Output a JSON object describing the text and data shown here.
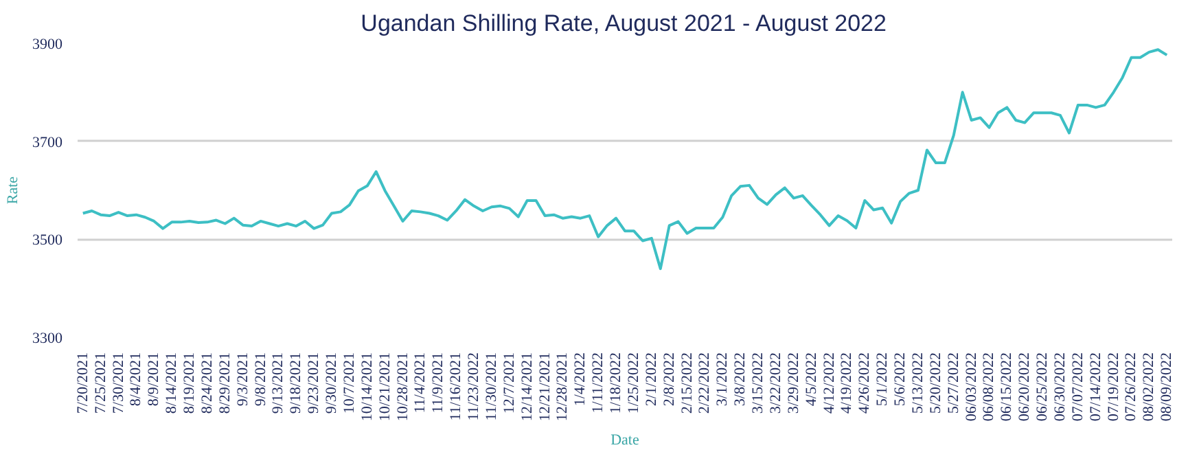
{
  "chart_data": {
    "type": "line",
    "title": "Ugandan Shilling Rate, August 2021 - August 2022",
    "xlabel": "Date",
    "ylabel": "Rate",
    "categories": [
      "7/20/2021",
      null,
      "7/25/2021",
      null,
      "7/30/2021",
      null,
      "8/4/2021",
      null,
      "8/9/2021",
      null,
      "8/14/2021",
      null,
      "8/19/2021",
      null,
      "8/24/2021",
      null,
      "8/29/2021",
      null,
      "9/3/2021",
      null,
      "9/8/2021",
      null,
      "9/13/2021",
      null,
      "9/18/2021",
      null,
      "9/23/2021",
      null,
      "9/30/2021",
      null,
      "10/7/2021",
      null,
      "10/14/2021",
      null,
      "10/21/2021",
      null,
      "10/28/2021",
      null,
      "11/4/2021",
      null,
      "11/9/2021",
      null,
      "11/16/2021",
      null,
      "11/23/2022",
      null,
      "11/30/2021",
      null,
      "12/7/2021",
      null,
      "12/14/2021",
      null,
      "12/21/2021",
      null,
      "12/28/2021",
      null,
      "1/4/2022",
      null,
      "1/11/2022",
      null,
      "1/18/2022",
      null,
      "1/25/2022",
      null,
      "2/1/2022",
      null,
      "2/8/2022",
      null,
      "2/15/2022",
      null,
      "2/22/2022",
      null,
      "3/1/2022",
      null,
      "3/8/2022",
      null,
      "3/15/2022",
      null,
      "3/22/2022",
      null,
      "3/29/2022",
      null,
      "4/5/2022",
      null,
      "4/12/2022",
      null,
      "4/19/2022",
      null,
      "4/26/2022",
      null,
      "5/1/2022",
      null,
      "5/6/2022",
      null,
      "5/13/2022",
      null,
      "5/20/2022",
      null,
      "5/27/2022",
      null,
      "06/03/2022",
      null,
      "06/08/2022",
      null,
      "06/15/2022",
      null,
      "06/20/2022",
      null,
      "06/25/2022",
      null,
      "06/30/2022",
      null,
      "07/07/2022",
      null,
      "07/14/2022",
      null,
      "07/19/2022",
      null,
      "07/26/2022",
      null,
      "08/02/2022",
      null,
      "08/09/2022"
    ],
    "series": [
      {
        "color": "#3dbfc4",
        "values": [
          3553,
          3558,
          3550,
          3548,
          3555,
          3548,
          3550,
          3545,
          3537,
          3522,
          3535,
          3535,
          3537,
          3534,
          3535,
          3539,
          3532,
          3543,
          3529,
          3527,
          3537,
          3532,
          3527,
          3532,
          3527,
          3537,
          3522,
          3529,
          3553,
          3556,
          3570,
          3599,
          3609,
          3638,
          3599,
          3568,
          3537,
          3558,
          3556,
          3553,
          3548,
          3539,
          3558,
          3581,
          3568,
          3558,
          3566,
          3568,
          3563,
          3546,
          3579,
          3579,
          3548,
          3550,
          3543,
          3546,
          3543,
          3548,
          3505,
          3528,
          3543,
          3517,
          3517,
          3497,
          3502,
          3440,
          3528,
          3536,
          3512,
          3523,
          3523,
          3523,
          3545,
          3589,
          3608,
          3610,
          3584,
          3571,
          3591,
          3605,
          3584,
          3589,
          3569,
          3550,
          3528,
          3548,
          3538,
          3523,
          3579,
          3560,
          3564,
          3533,
          3577,
          3594,
          3600,
          3682,
          3656,
          3656,
          3712,
          3800,
          3743,
          3748,
          3728,
          3758,
          3769,
          3743,
          3738,
          3758,
          3758,
          3758,
          3753,
          3717,
          3774,
          3774,
          3769,
          3774,
          3800,
          3830,
          3871,
          3871,
          3882,
          3887,
          3876
        ]
      }
    ],
    "ylim": [
      3300,
      3900
    ],
    "yticks": [
      3300,
      3500,
      3700,
      3900
    ],
    "grid": "y",
    "line_style": "solid",
    "marker": "none"
  }
}
